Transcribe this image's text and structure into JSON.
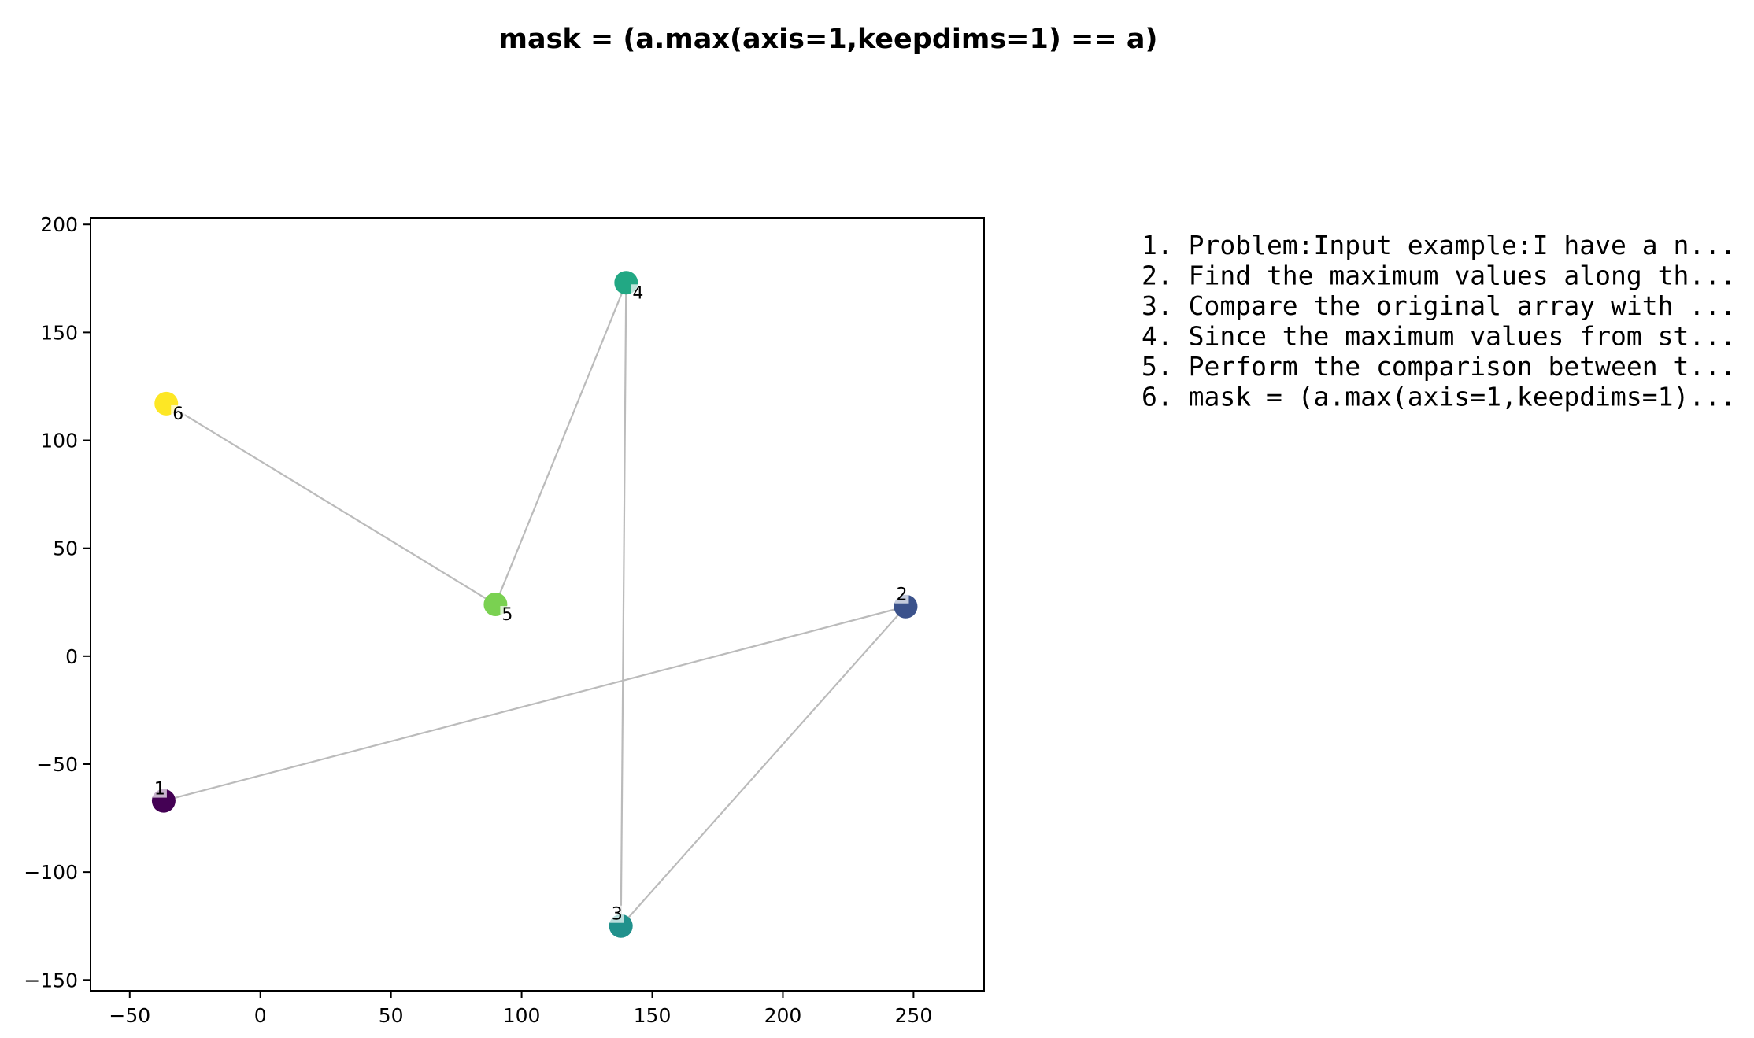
{
  "chart_data": {
    "type": "scatter",
    "title": "mask = (a.max(axis=1,keepdims=1) == a)",
    "xlabel": "",
    "ylabel": "",
    "xlim": [
      -65,
      277
    ],
    "ylim": [
      -155,
      203
    ],
    "xticks": [
      -50,
      0,
      50,
      100,
      150,
      200,
      250
    ],
    "yticks": [
      -150,
      -100,
      -50,
      0,
      50,
      100,
      150,
      200
    ],
    "xtick_labels": [
      "−50",
      "0",
      "50",
      "100",
      "150",
      "200",
      "250"
    ],
    "ytick_labels": [
      "−150",
      "−100",
      "−50",
      "0",
      "50",
      "100",
      "150",
      "200"
    ],
    "grid": false,
    "connect_points_in_order": true,
    "line_color": "#bbbbbb",
    "points": [
      {
        "label": "1",
        "x": -37,
        "y": -67,
        "color": "#440154"
      },
      {
        "label": "2",
        "x": 247,
        "y": 23,
        "color": "#3b528b"
      },
      {
        "label": "3",
        "x": 138,
        "y": -125,
        "color": "#21918c"
      },
      {
        "label": "4",
        "x": 140,
        "y": 173,
        "color": "#22a884"
      },
      {
        "label": "5",
        "x": 90,
        "y": 24,
        "color": "#7ad151"
      },
      {
        "label": "6",
        "x": -36,
        "y": 117,
        "color": "#fde725"
      }
    ],
    "legend_placement": "right",
    "legend": [
      "1. Problem:Input example:I have a n...",
      "2. Find the maximum values along th...",
      "3. Compare the original array with ...",
      "4. Since the maximum values from st...",
      "5. Perform the comparison between t...",
      "6. mask = (a.max(axis=1,keepdims=1)..."
    ]
  }
}
